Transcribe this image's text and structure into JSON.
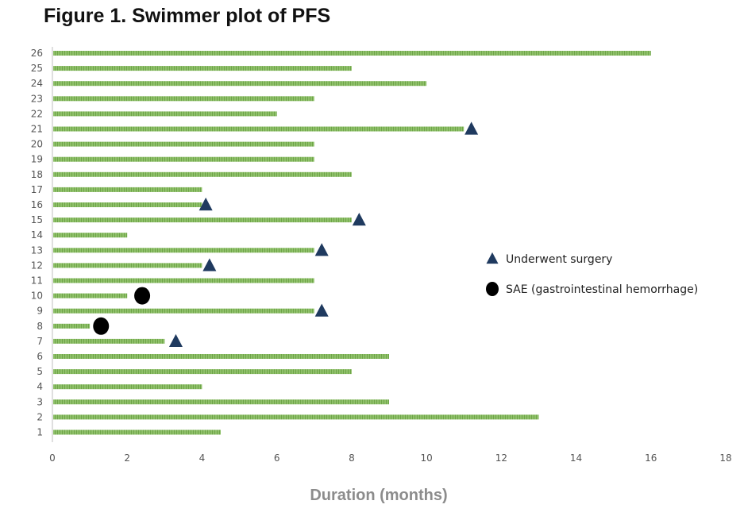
{
  "chart_data": {
    "type": "bar",
    "orientation": "horizontal",
    "title": "Figure 1. Swimmer plot of PFS",
    "xlabel": "Duration (months)",
    "ylabel": "",
    "xlim": [
      0,
      18
    ],
    "x_ticks": [
      0,
      2,
      4,
      6,
      8,
      10,
      12,
      14,
      16,
      18
    ],
    "categories": [
      "1",
      "2",
      "3",
      "4",
      "5",
      "6",
      "7",
      "8",
      "9",
      "10",
      "11",
      "12",
      "13",
      "14",
      "15",
      "16",
      "17",
      "18",
      "19",
      "20",
      "21",
      "22",
      "23",
      "24",
      "25",
      "26"
    ],
    "values": [
      4.5,
      13,
      9,
      4,
      8,
      9,
      3,
      1,
      7,
      2,
      7,
      4,
      7,
      2,
      8,
      4,
      4,
      8,
      7,
      7,
      11,
      6,
      7,
      10,
      8,
      16
    ],
    "bar_color": "#7fb55a",
    "events": [
      {
        "type": "surgery",
        "patient": "7",
        "x": 3.3
      },
      {
        "type": "surgery",
        "patient": "9",
        "x": 7.2
      },
      {
        "type": "surgery",
        "patient": "12",
        "x": 4.2
      },
      {
        "type": "surgery",
        "patient": "13",
        "x": 7.2
      },
      {
        "type": "surgery",
        "patient": "15",
        "x": 8.2
      },
      {
        "type": "surgery",
        "patient": "16",
        "x": 4.1
      },
      {
        "type": "surgery",
        "patient": "21",
        "x": 11.2
      },
      {
        "type": "sae",
        "patient": "8",
        "x": 1.3
      },
      {
        "type": "sae",
        "patient": "10",
        "x": 2.4
      }
    ],
    "legend": {
      "position": "right",
      "entries": [
        {
          "key": "surgery",
          "label": "Underwent  surgery",
          "marker": "triangle",
          "color": "#1f3a5f"
        },
        {
          "key": "sae",
          "label": "SAE (gastrointestinal hemorrhage)",
          "marker": "circle",
          "color": "#000000"
        }
      ]
    }
  }
}
